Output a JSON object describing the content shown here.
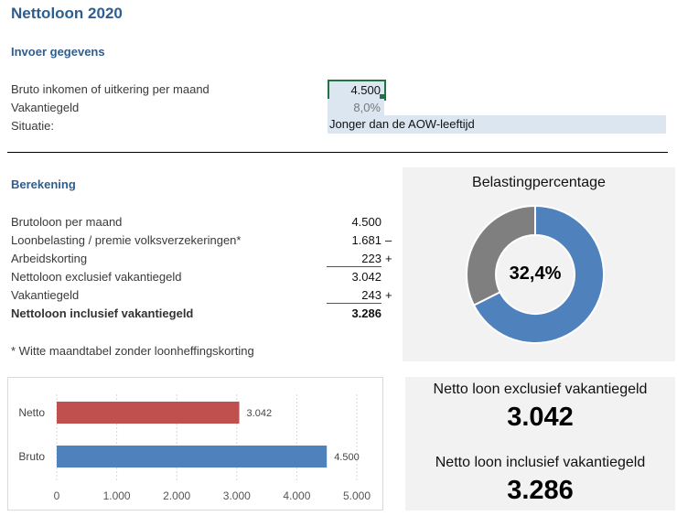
{
  "title": "Nettoloon 2020",
  "input": {
    "heading": "Invoer gegevens",
    "rows": [
      {
        "label": "Bruto inkomen of uitkering per maand",
        "value": "4.500"
      },
      {
        "label": "Vakantiegeld",
        "value": "8,0%"
      },
      {
        "label": "Situatie:",
        "value": "Jonger dan de AOW-leeftijd"
      }
    ]
  },
  "calc": {
    "heading": "Berekening",
    "rows": [
      {
        "label": "Brutoloon per maand",
        "value": "4.500",
        "sign": ""
      },
      {
        "label": "Loonbelasting / premie volksverzekeringen*",
        "value": "1.681",
        "sign": "–"
      },
      {
        "label": "Arbeidskorting",
        "value": "223",
        "sign": "+"
      },
      {
        "label": "Nettoloon exclusief vakantiegeld",
        "value": "3.042",
        "sign": ""
      },
      {
        "label": "Vakantiegeld",
        "value": "243",
        "sign": "+"
      },
      {
        "label": "Nettoloon inclusief vakantiegeld",
        "value": "3.286",
        "sign": ""
      }
    ],
    "footnote": "* Witte maandtabel zonder loonheffingskorting"
  },
  "kpi": {
    "excl_label": "Netto loon exclusief vakantiegeld",
    "excl_value": "3.042",
    "incl_label": "Netto loon inclusief vakantiegeld",
    "incl_value": "3.286"
  },
  "colors": {
    "accent": "#2e5e8f",
    "blue": "#4f81bd",
    "red": "#c0504d",
    "gray": "#7f7f7f",
    "input_fill": "#dce6f1",
    "selection": "#217346"
  },
  "chart_data": [
    {
      "type": "pie",
      "title": "Belastingpercentage",
      "center_label": "32,4%",
      "values": [
        67.6,
        32.4
      ],
      "colors": [
        "#4f81bd",
        "#7f7f7f"
      ]
    },
    {
      "type": "bar",
      "orientation": "horizontal",
      "categories": [
        "Netto",
        "Bruto"
      ],
      "values": [
        3042,
        4500
      ],
      "data_labels": [
        "3.042",
        "4.500"
      ],
      "colors": [
        "#c0504d",
        "#4f81bd"
      ],
      "xlim": [
        0,
        5000
      ],
      "xticks": [
        "0",
        "1.000",
        "2.000",
        "3.000",
        "4.000",
        "5.000"
      ],
      "grid": true
    }
  ]
}
